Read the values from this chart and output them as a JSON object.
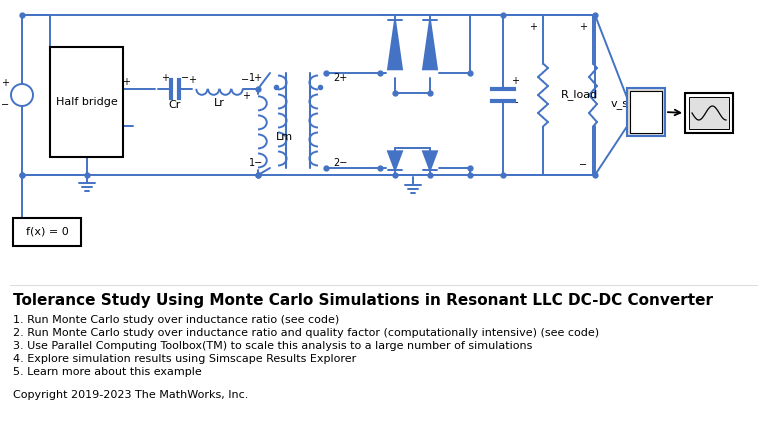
{
  "title": "Tolerance Study Using Monte Carlo Simulations in Resonant LLC DC-DC Converter",
  "bullet_points": [
    "1. Run Monte Carlo study over inductance ratio (see code)",
    "2. Run Monte Carlo study over inductance ratio and quality factor (computationally intensive) (see code)",
    "3. Use Parallel Computing Toolbox(TM) to scale this analysis to a large number of simulations",
    "4. Explore simulation results using Simscape Results Explorer",
    "5. Learn more about this example"
  ],
  "copyright": "Copyright 2019-2023 The MathWorks, Inc.",
  "bg_color": "#ffffff",
  "cc": "#4472c4",
  "text_color": "#000000",
  "title_fontsize": 11,
  "bullet_fontsize": 8,
  "copyright_fontsize": 8
}
